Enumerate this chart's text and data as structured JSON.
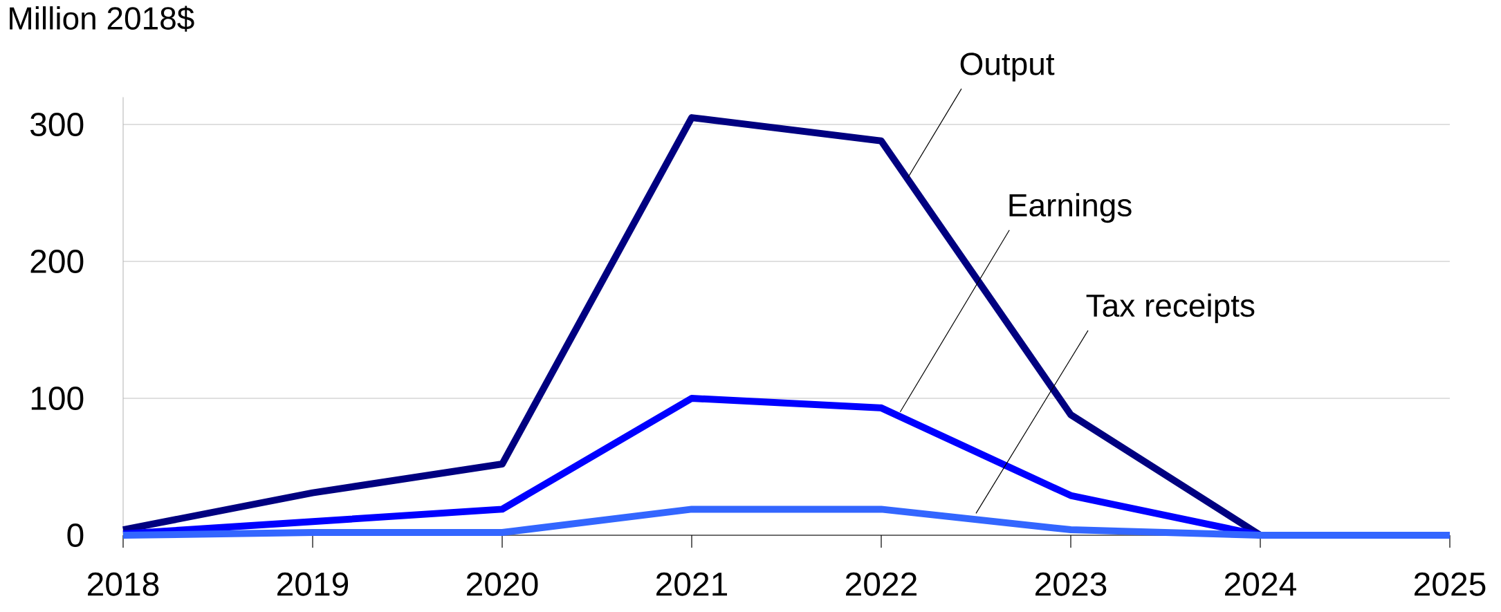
{
  "chart_data": {
    "type": "line",
    "ylabel": "Million 2018$",
    "x": [
      2018,
      2019,
      2020,
      2021,
      2022,
      2023,
      2024,
      2025
    ],
    "series": [
      {
        "name": "Output",
        "color": "#000080",
        "values": [
          4,
          31,
          52,
          305,
          288,
          88,
          0,
          0
        ]
      },
      {
        "name": "Earnings",
        "color": "#0000ff",
        "values": [
          1,
          10,
          19,
          100,
          93,
          29,
          0,
          0
        ]
      },
      {
        "name": "Tax receipts",
        "color": "#3366ff",
        "values": [
          0,
          2,
          2,
          19,
          19,
          4,
          0,
          0
        ]
      }
    ],
    "xlim": [
      2018,
      2025
    ],
    "ylim": [
      0,
      320
    ],
    "xticks": [
      2018,
      2019,
      2020,
      2021,
      2022,
      2023,
      2024,
      2025
    ],
    "yticks": [
      0,
      100,
      200,
      300
    ],
    "grid": "y",
    "legend": false,
    "marker": "none",
    "line_style": "solid"
  }
}
